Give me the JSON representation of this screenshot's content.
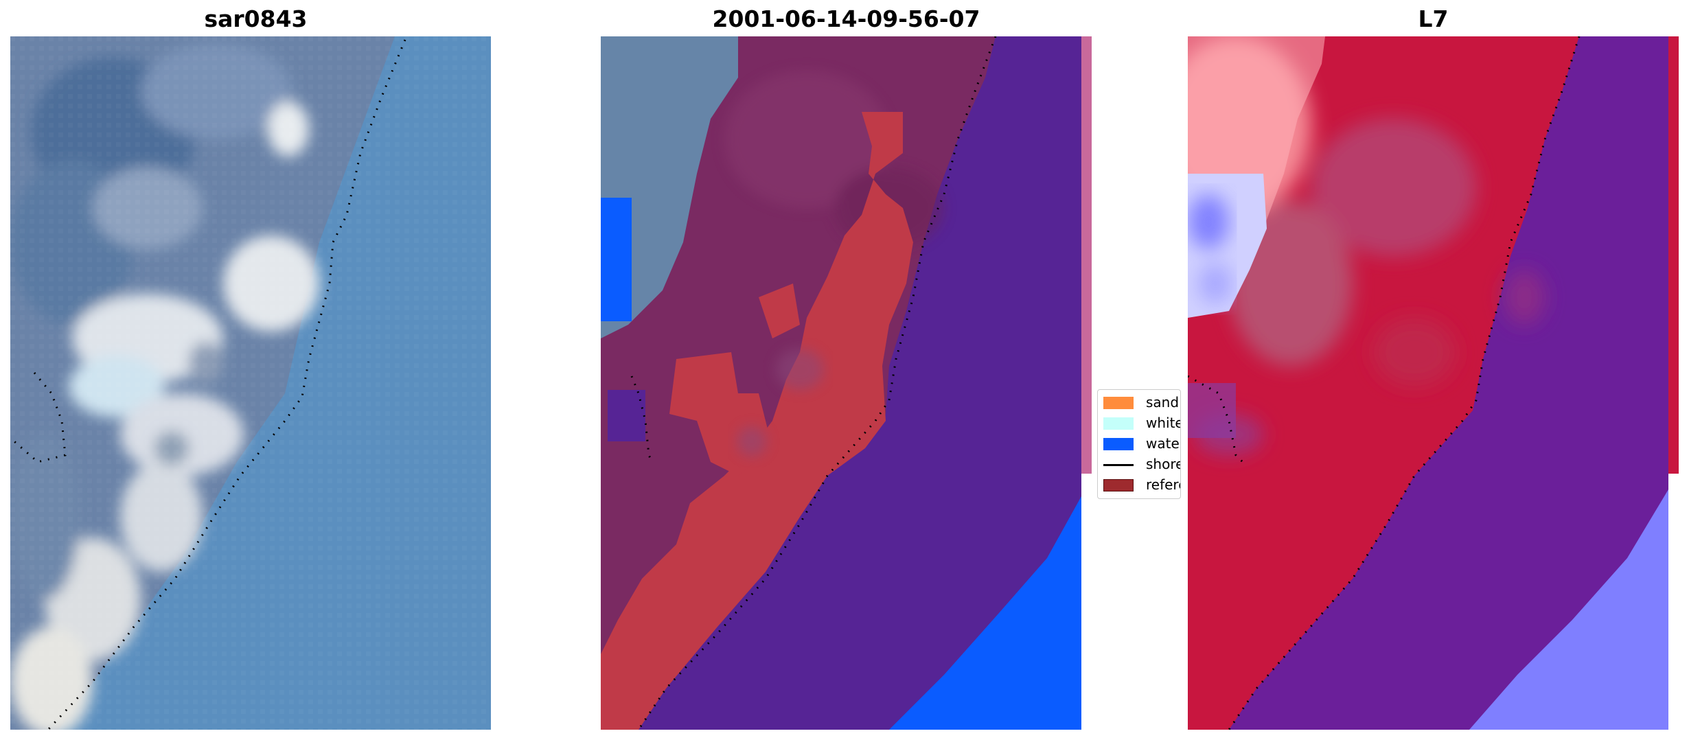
{
  "panels": [
    {
      "title": "sar0843"
    },
    {
      "title": "2001-06-14-09-56-07"
    },
    {
      "title": "L7"
    }
  ],
  "legend": {
    "items": [
      {
        "label": "sand",
        "color": "#ff8c3c"
      },
      {
        "label": "whitewater",
        "color": "#c4fffa"
      },
      {
        "label": "water",
        "color": "#0a5cff"
      },
      {
        "label": "shoreline",
        "color": "#000000"
      },
      {
        "label": "reference shoreline",
        "color": "#9e2a2e"
      }
    ]
  },
  "colors": {
    "ocean_rgb": "#5b8fbf",
    "classified_land": "#7a2a62",
    "classified_sand": "#c03a48",
    "classified_ocean": "#562495",
    "classified_water": "#0a5cff",
    "index_red": "#c8163f",
    "index_purple": "#6b1f9a",
    "index_blue": "#7f7fff"
  }
}
